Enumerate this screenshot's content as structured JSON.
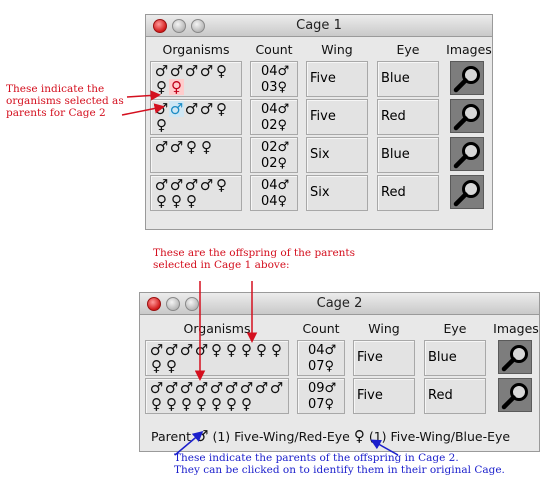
{
  "cage1": {
    "title": "Cage 1",
    "headers": {
      "organisms": "Organisms",
      "count": "Count",
      "wing": "Wing",
      "eye": "Eye",
      "images": "Images"
    },
    "rows": [
      {
        "organisms": [
          "♂",
          "♂",
          "♂",
          "♂",
          "♀",
          "♀",
          "♀"
        ],
        "male": "04♂",
        "female": "03♀",
        "wing": "Five",
        "eye": "Blue"
      },
      {
        "organisms": [
          "♂",
          "♂",
          "♂",
          "♂",
          "♀",
          "♀"
        ],
        "male": "04♂",
        "female": "02♀",
        "wing": "Five",
        "eye": "Red"
      },
      {
        "organisms": [
          "♂",
          "♂",
          "♀",
          "♀"
        ],
        "male": "02♂",
        "female": "02♀",
        "wing": "Six",
        "eye": "Blue"
      },
      {
        "organisms": [
          "♂",
          "♂",
          "♂",
          "♂",
          "♀",
          "♀",
          "♀",
          "♀"
        ],
        "male": "04♂",
        "female": "04♀",
        "wing": "Six",
        "eye": "Red"
      }
    ]
  },
  "cage2": {
    "title": "Cage 2",
    "headers": {
      "organisms": "Organisms",
      "count": "Count",
      "wing": "Wing",
      "eye": "Eye",
      "images": "Images"
    },
    "rows": [
      {
        "organisms": [
          "♂",
          "♂",
          "♂",
          "♂",
          "♀",
          "♀",
          "♀",
          "♀",
          "♀",
          "♀",
          "♀"
        ],
        "male": "04♂",
        "female": "07♀",
        "wing": "Five",
        "eye": "Blue"
      },
      {
        "organisms": [
          "♂",
          "♂",
          "♂",
          "♂",
          "♂",
          "♂",
          "♂",
          "♂",
          "♂",
          "♀",
          "♀",
          "♀",
          "♀",
          "♀",
          "♀",
          "♀"
        ],
        "male": "09♂",
        "female": "07♀",
        "wing": "Five",
        "eye": "Red"
      }
    ],
    "parent": {
      "label": "Parent",
      "male_sym": "♂",
      "male_desc": "(1) Five-Wing/Red-Eye",
      "female_sym": "♀",
      "female_desc": "(1) Five-Wing/Blue-Eye"
    }
  },
  "annotations": {
    "selected_line1": "These indicate the",
    "selected_line2": "organisms selected as",
    "selected_line3": "parents for Cage 2",
    "offspring_line1": "These are the offspring of the parents",
    "offspring_line2": "selected in Cage 1 above:",
    "parents_line1": "These indicate the parents of the offspring in Cage 2.",
    "parents_line2": "They can be clicked on to identify them in their original Cage."
  },
  "colors": {
    "annotation_red": "#d4101f",
    "annotation_blue": "#1b1fcc",
    "selected_female": "#c0001a",
    "selected_male": "#1d8cc4"
  }
}
